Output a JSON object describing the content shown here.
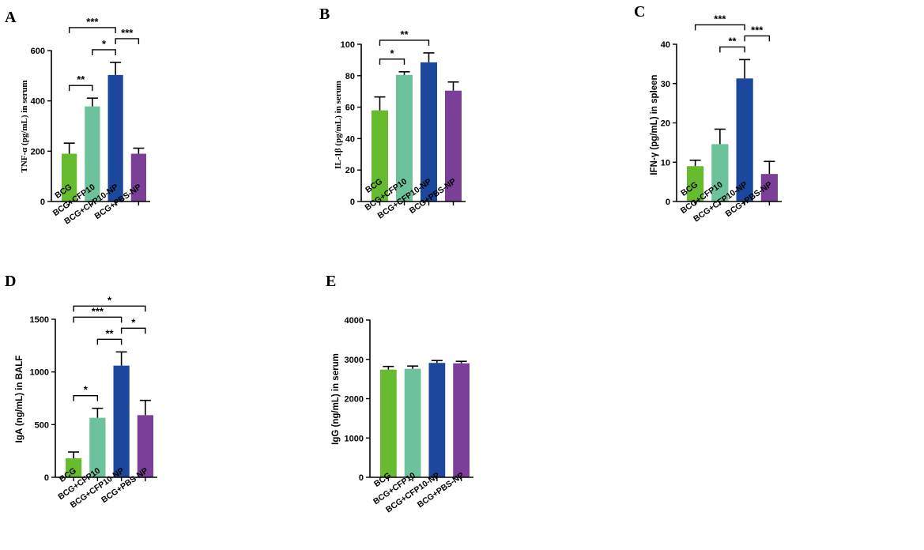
{
  "colors": {
    "BCG": "#66bb2e",
    "BCG+CFP10": "#6cc29a",
    "BCG+CFP10-NP": "#1b489c",
    "BCG+PBS-NP": "#7c3f98"
  },
  "chart_data": [
    {
      "id": "A",
      "panel_label": "A",
      "type": "bar",
      "ylabel": "TNF-α (pg/mL) in serum",
      "categories": [
        "BCG",
        "BCG+CFP10",
        "BCG+CFP10-NP",
        "BCG+PBS-NP"
      ],
      "values": [
        190,
        378,
        503,
        190
      ],
      "errors": [
        42,
        33,
        50,
        22
      ],
      "ylim": [
        0,
        600
      ],
      "yticks": [
        0,
        200,
        400,
        600
      ],
      "significance": [
        {
          "from": 0,
          "to": 1,
          "label": "**"
        },
        {
          "from": 1,
          "to": 2,
          "label": "*"
        },
        {
          "from": 0,
          "to": 2,
          "label": "***"
        },
        {
          "from": 2,
          "to": 3,
          "label": "***"
        }
      ]
    },
    {
      "id": "B",
      "panel_label": "B",
      "type": "bar",
      "ylabel": "IL-1β (pg/mL) in serum",
      "categories": [
        "BCG",
        "BCG+CFP10",
        "BCG+CFP10-NP",
        "BCG+PBS-NP"
      ],
      "values": [
        58,
        80.5,
        88.5,
        70.5
      ],
      "errors": [
        8.5,
        2,
        6,
        5.5
      ],
      "ylim": [
        0,
        100
      ],
      "yticks": [
        0,
        20,
        40,
        60,
        80,
        100
      ],
      "significance": [
        {
          "from": 0,
          "to": 1,
          "label": "*"
        },
        {
          "from": 0,
          "to": 2,
          "label": "**"
        }
      ]
    },
    {
      "id": "C",
      "panel_label": "C",
      "type": "bar",
      "ylabel": "IFN-γ (pg/mL) in spleen",
      "categories": [
        "BCG",
        "BCG+CFP10",
        "BCG+CFP10-NP",
        "BCG+PBS-NP"
      ],
      "values": [
        9,
        14.6,
        31.3,
        7
      ],
      "errors": [
        1.5,
        3.8,
        4.8,
        3.2
      ],
      "ylim": [
        0,
        40
      ],
      "yticks": [
        0,
        10,
        20,
        30,
        40
      ],
      "significance": [
        {
          "from": 1,
          "to": 2,
          "label": "**"
        },
        {
          "from": 0,
          "to": 2,
          "label": "***"
        },
        {
          "from": 2,
          "to": 3,
          "label": "***"
        }
      ]
    },
    {
      "id": "D",
      "panel_label": "D",
      "type": "bar",
      "ylabel": "IgA (ng/mL) in BALF",
      "categories": [
        "BCG",
        "BCG+CFP10",
        "BCG+CFP10-NP",
        "BCG+PBS-NP"
      ],
      "values": [
        180,
        565,
        1060,
        590
      ],
      "errors": [
        60,
        90,
        130,
        140
      ],
      "ylim": [
        0,
        1500
      ],
      "yticks": [
        0,
        500,
        1000,
        1500
      ],
      "significance": [
        {
          "from": 0,
          "to": 1,
          "label": "*"
        },
        {
          "from": 1,
          "to": 2,
          "label": "**"
        },
        {
          "from": 2,
          "to": 3,
          "label": "*"
        },
        {
          "from": 0,
          "to": 2,
          "label": "***"
        },
        {
          "from": 0,
          "to": 3,
          "label": "*"
        }
      ]
    },
    {
      "id": "E",
      "panel_label": "E",
      "type": "bar",
      "ylabel": "IgG (ng/mL) in serum",
      "categories": [
        "BCG",
        "BCG+CFP10",
        "BCG+CFP10-NP",
        "BCG+PBS-NP"
      ],
      "values": [
        2740,
        2760,
        2910,
        2900
      ],
      "errors": [
        80,
        70,
        60,
        50
      ],
      "ylim": [
        0,
        4000
      ],
      "yticks": [
        0,
        1000,
        2000,
        3000,
        4000
      ],
      "significance": []
    }
  ]
}
